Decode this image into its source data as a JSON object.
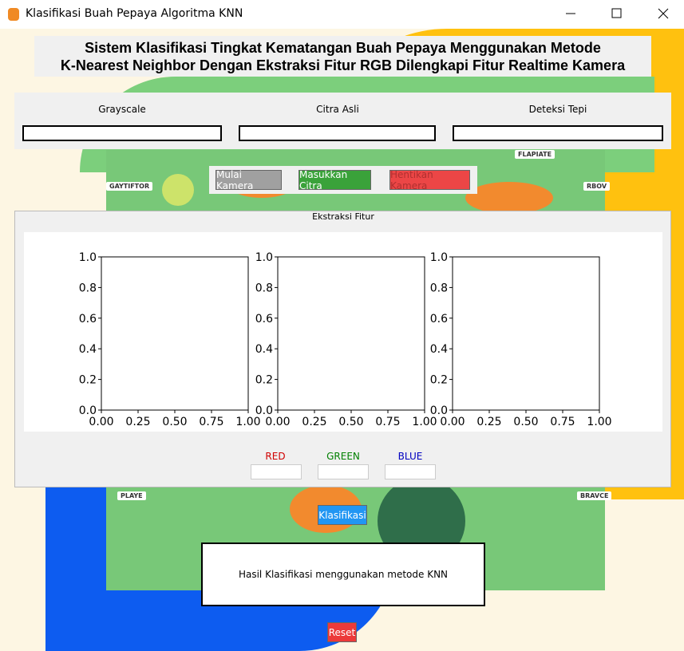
{
  "window": {
    "title": "Klasifikasi Buah Pepaya Algoritma KNN"
  },
  "header": {
    "title_lines": [
      "Sistem Klasifikasi Tingkat Kematangan Buah Pepaya Menggunakan Metode",
      "K-Nearest Neighbor Dengan Ekstraksi Fitur RGB Dilengkapi Fitur Realtime Kamera"
    ]
  },
  "preview": {
    "labels": [
      "Grayscale",
      "Citra Asli",
      "Deteksi Tepi"
    ]
  },
  "buttons": {
    "start": "Mulai Kamera",
    "load": "Masukkan Citra",
    "stop": "Hentikan Kamera",
    "classify": "Klasifikasi",
    "reset": "Reset"
  },
  "features": {
    "legend": "Ekstraksi Fitur",
    "xticks": [
      "0.00",
      "0.25",
      "0.50",
      "0.75",
      "1.00"
    ],
    "yticks": [
      "0.0",
      "0.2",
      "0.4",
      "0.6",
      "0.8",
      "1.0"
    ],
    "channels": [
      "RED",
      "GREEN",
      "BLUE"
    ]
  },
  "result": {
    "text": "Hasil Klasifikasi menggunakan metode KNN"
  },
  "background": {
    "labels": [
      "FLAPIATE",
      "GAYTIFTOR",
      "RBOV",
      "PLAYE",
      "BRAVCE"
    ]
  }
}
